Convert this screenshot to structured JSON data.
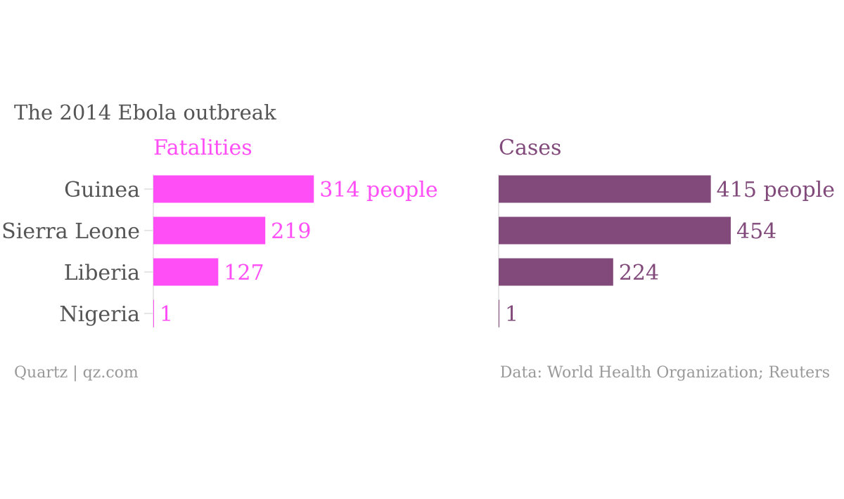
{
  "chart_data": {
    "type": "bar",
    "title": "The 2014 Ebola outbreak",
    "categories": [
      "Guinea",
      "Sierra Leone",
      "Liberia",
      "Nigeria"
    ],
    "series": [
      {
        "name": "Fatalities",
        "values": [
          314,
          219,
          127,
          1
        ],
        "color": "#ff4ef5",
        "labels": [
          "314 people",
          "219",
          "127",
          "1"
        ]
      },
      {
        "name": "Cases",
        "values": [
          415,
          454,
          224,
          1
        ],
        "color": "#814a7b",
        "labels": [
          "415 people",
          "454",
          "224",
          "1"
        ]
      }
    ],
    "xlim": [
      0,
      454
    ],
    "orientation": "horizontal",
    "grid": false,
    "source_left": "Quartz | qz.com",
    "source_right": "Data: World Health Organization; Reuters"
  },
  "colors": {
    "text": "#555555",
    "axis": "#cccccc",
    "footer": "#999999"
  }
}
